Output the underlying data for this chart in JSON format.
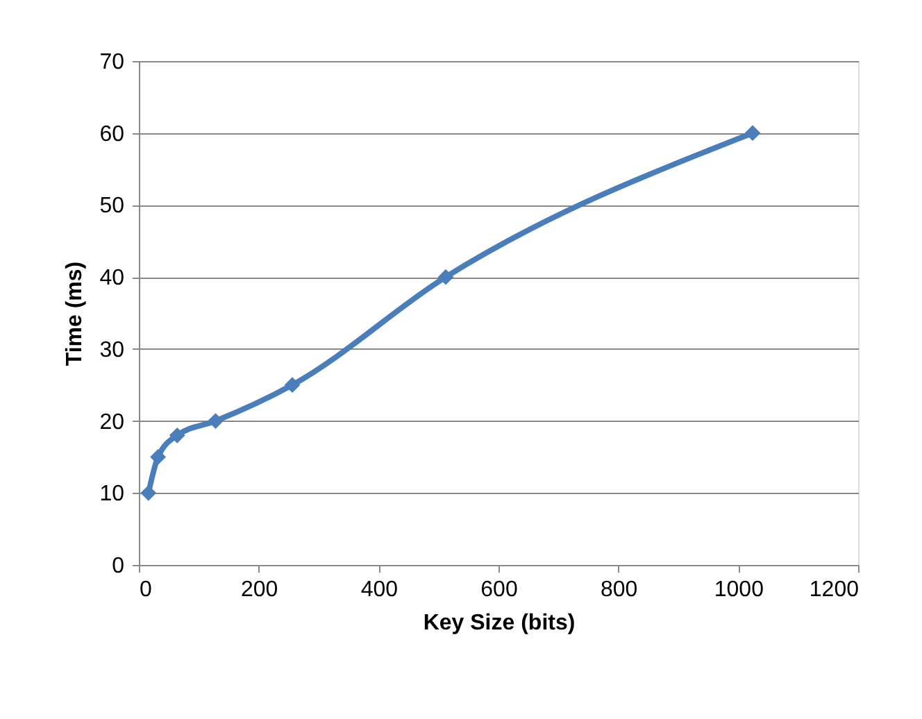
{
  "chart_data": {
    "type": "line",
    "xlabel": "Key Size (bits)",
    "ylabel": "Time (ms)",
    "x": [
      16,
      32,
      64,
      128,
      256,
      512,
      1024
    ],
    "series": [
      {
        "color": "#4a7ebb",
        "values": [
          10,
          15,
          18,
          20,
          25,
          40,
          60
        ]
      }
    ],
    "xlim": [
      0,
      1200
    ],
    "xticks": [
      0,
      200,
      400,
      600,
      800,
      1000,
      1200
    ],
    "ylim": [
      0,
      70
    ],
    "yticks": [
      0,
      10,
      20,
      30,
      40,
      50,
      60,
      70
    ],
    "grid": "y",
    "legend": false,
    "marker": "diamond",
    "line_style": "solid"
  }
}
